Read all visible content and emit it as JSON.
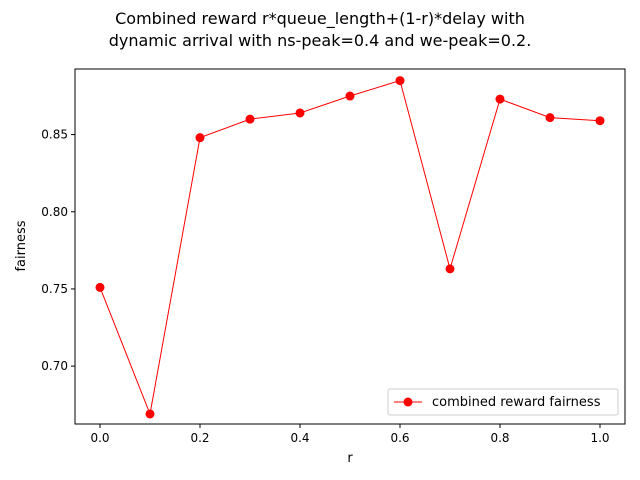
{
  "chart_data": {
    "type": "line",
    "title_lines": [
      "Combined reward r*queue_length+(1-r)*delay with",
      "dynamic arrival with ns-peak=0.4 and we-peak=0.2."
    ],
    "xlabel": "r",
    "ylabel": "fairness",
    "xlim": [
      -0.05,
      1.05
    ],
    "ylim": [
      0.6625,
      0.8925
    ],
    "xticks": [
      0.0,
      0.2,
      0.4,
      0.6,
      0.8,
      1.0
    ],
    "xtick_labels": [
      "0.0",
      "0.2",
      "0.4",
      "0.6",
      "0.8",
      "1.0"
    ],
    "yticks": [
      0.7,
      0.75,
      0.8,
      0.85
    ],
    "ytick_labels": [
      "0.70",
      "0.75",
      "0.80",
      "0.85"
    ],
    "grid": false,
    "legend_position": "bottom-right",
    "series": [
      {
        "name": "combined reward fairness",
        "color": "#ff0000",
        "marker": "circle",
        "x": [
          0.0,
          0.1,
          0.2,
          0.3,
          0.4,
          0.5,
          0.6,
          0.7,
          0.8,
          0.9,
          1.0
        ],
        "y": [
          0.751,
          0.669,
          0.848,
          0.86,
          0.864,
          0.875,
          0.885,
          0.763,
          0.873,
          0.861,
          0.859
        ]
      }
    ]
  }
}
